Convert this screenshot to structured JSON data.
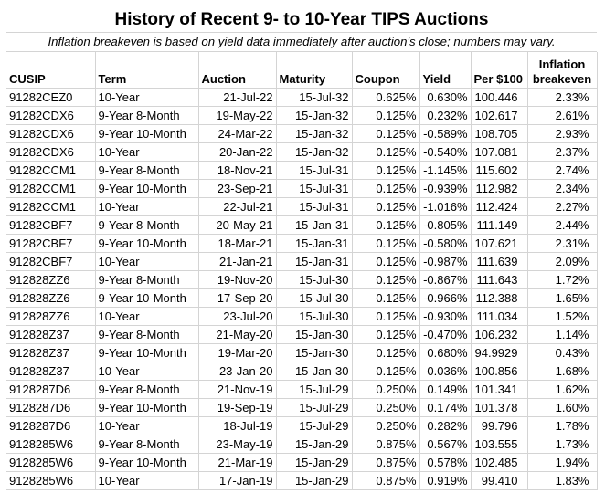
{
  "title": "History of Recent 9- to 10-Year TIPS Auctions",
  "subtitle": "Inflation breakeven is based on yield data immediately after auction's close; numbers may vary.",
  "columns": {
    "cusip": "CUSIP",
    "term": "Term",
    "auction": "Auction",
    "maturity": "Maturity",
    "coupon": "Coupon",
    "yield": "Yield",
    "price": "Per $100",
    "breakeven_line1": "Inflation",
    "breakeven_line2": "breakeven"
  },
  "rows": [
    {
      "cusip": "91282CEZ0",
      "term": "10-Year",
      "auction": "21-Jul-22",
      "maturity": "15-Jul-32",
      "coupon": "0.625%",
      "yield": "0.630%",
      "price": "100.446",
      "breakeven": "2.33%"
    },
    {
      "cusip": "91282CDX6",
      "term": "9-Year 8-Month",
      "auction": "19-May-22",
      "maturity": "15-Jan-32",
      "coupon": "0.125%",
      "yield": "0.232%",
      "price": "102.617",
      "breakeven": "2.61%"
    },
    {
      "cusip": "91282CDX6",
      "term": "9-Year 10-Month",
      "auction": "24-Mar-22",
      "maturity": "15-Jan-32",
      "coupon": "0.125%",
      "yield": "-0.589%",
      "price": "108.705",
      "breakeven": "2.93%"
    },
    {
      "cusip": "91282CDX6",
      "term": "10-Year",
      "auction": "20-Jan-22",
      "maturity": "15-Jan-32",
      "coupon": "0.125%",
      "yield": "-0.540%",
      "price": "107.081",
      "breakeven": "2.37%"
    },
    {
      "cusip": "91282CCM1",
      "term": "9-Year 8-Month",
      "auction": "18-Nov-21",
      "maturity": "15-Jul-31",
      "coupon": "0.125%",
      "yield": "-1.145%",
      "price": "115.602",
      "breakeven": "2.74%"
    },
    {
      "cusip": "91282CCM1",
      "term": "9-Year 10-Month",
      "auction": "23-Sep-21",
      "maturity": "15-Jul-31",
      "coupon": "0.125%",
      "yield": "-0.939%",
      "price": "112.982",
      "breakeven": "2.34%"
    },
    {
      "cusip": "91282CCM1",
      "term": "10-Year",
      "auction": "22-Jul-21",
      "maturity": "15-Jul-31",
      "coupon": "0.125%",
      "yield": "-1.016%",
      "price": "112.424",
      "breakeven": "2.27%"
    },
    {
      "cusip": "91282CBF7",
      "term": "9-Year 8-Month",
      "auction": "20-May-21",
      "maturity": "15-Jan-31",
      "coupon": "0.125%",
      "yield": "-0.805%",
      "price": "111.149",
      "breakeven": "2.44%"
    },
    {
      "cusip": "91282CBF7",
      "term": "9-Year 10-Month",
      "auction": "18-Mar-21",
      "maturity": "15-Jan-31",
      "coupon": "0.125%",
      "yield": "-0.580%",
      "price": "107.621",
      "breakeven": "2.31%"
    },
    {
      "cusip": "91282CBF7",
      "term": "10-Year",
      "auction": "21-Jan-21",
      "maturity": "15-Jan-31",
      "coupon": "0.125%",
      "yield": "-0.987%",
      "price": "111.639",
      "breakeven": "2.09%"
    },
    {
      "cusip": "912828ZZ6",
      "term": "9-Year 8-Month",
      "auction": "19-Nov-20",
      "maturity": "15-Jul-30",
      "coupon": "0.125%",
      "yield": "-0.867%",
      "price": "111.643",
      "breakeven": "1.72%"
    },
    {
      "cusip": "912828ZZ6",
      "term": "9-Year 10-Month",
      "auction": "17-Sep-20",
      "maturity": "15-Jul-30",
      "coupon": "0.125%",
      "yield": "-0.966%",
      "price": "112.388",
      "breakeven": "1.65%"
    },
    {
      "cusip": "912828ZZ6",
      "term": "10-Year",
      "auction": "23-Jul-20",
      "maturity": "15-Jul-30",
      "coupon": "0.125%",
      "yield": "-0.930%",
      "price": "111.034",
      "breakeven": "1.52%"
    },
    {
      "cusip": "912828Z37",
      "term": "9-Year 8-Month",
      "auction": "21-May-20",
      "maturity": "15-Jan-30",
      "coupon": "0.125%",
      "yield": "-0.470%",
      "price": "106.232",
      "breakeven": "1.14%"
    },
    {
      "cusip": "912828Z37",
      "term": "9-Year 10-Month",
      "auction": "19-Mar-20",
      "maturity": "15-Jan-30",
      "coupon": "0.125%",
      "yield": "0.680%",
      "price": "94.9929",
      "breakeven": "0.43%"
    },
    {
      "cusip": "912828Z37",
      "term": "10-Year",
      "auction": "23-Jan-20",
      "maturity": "15-Jan-30",
      "coupon": "0.125%",
      "yield": "0.036%",
      "price": "100.856",
      "breakeven": "1.68%"
    },
    {
      "cusip": "9128287D6",
      "term": "9-Year 8-Month",
      "auction": "21-Nov-19",
      "maturity": "15-Jul-29",
      "coupon": "0.250%",
      "yield": "0.149%",
      "price": "101.341",
      "breakeven": "1.62%"
    },
    {
      "cusip": "9128287D6",
      "term": "9-Year 10-Month",
      "auction": "19-Sep-19",
      "maturity": "15-Jul-29",
      "coupon": "0.250%",
      "yield": "0.174%",
      "price": "101.378",
      "breakeven": "1.60%"
    },
    {
      "cusip": "9128287D6",
      "term": "10-Year",
      "auction": "18-Jul-19",
      "maturity": "15-Jul-29",
      "coupon": "0.250%",
      "yield": "0.282%",
      "price": "99.796",
      "breakeven": "1.78%"
    },
    {
      "cusip": "9128285W6",
      "term": "9-Year 8-Month",
      "auction": "23-May-19",
      "maturity": "15-Jan-29",
      "coupon": "0.875%",
      "yield": "0.567%",
      "price": "103.555",
      "breakeven": "1.73%"
    },
    {
      "cusip": "9128285W6",
      "term": "9-Year 10-Month",
      "auction": "21-Mar-19",
      "maturity": "15-Jan-29",
      "coupon": "0.875%",
      "yield": "0.578%",
      "price": "102.485",
      "breakeven": "1.94%"
    },
    {
      "cusip": "9128285W6",
      "term": "10-Year",
      "auction": "17-Jan-19",
      "maturity": "15-Jan-29",
      "coupon": "0.875%",
      "yield": "0.919%",
      "price": "99.410",
      "breakeven": "1.83%"
    }
  ]
}
